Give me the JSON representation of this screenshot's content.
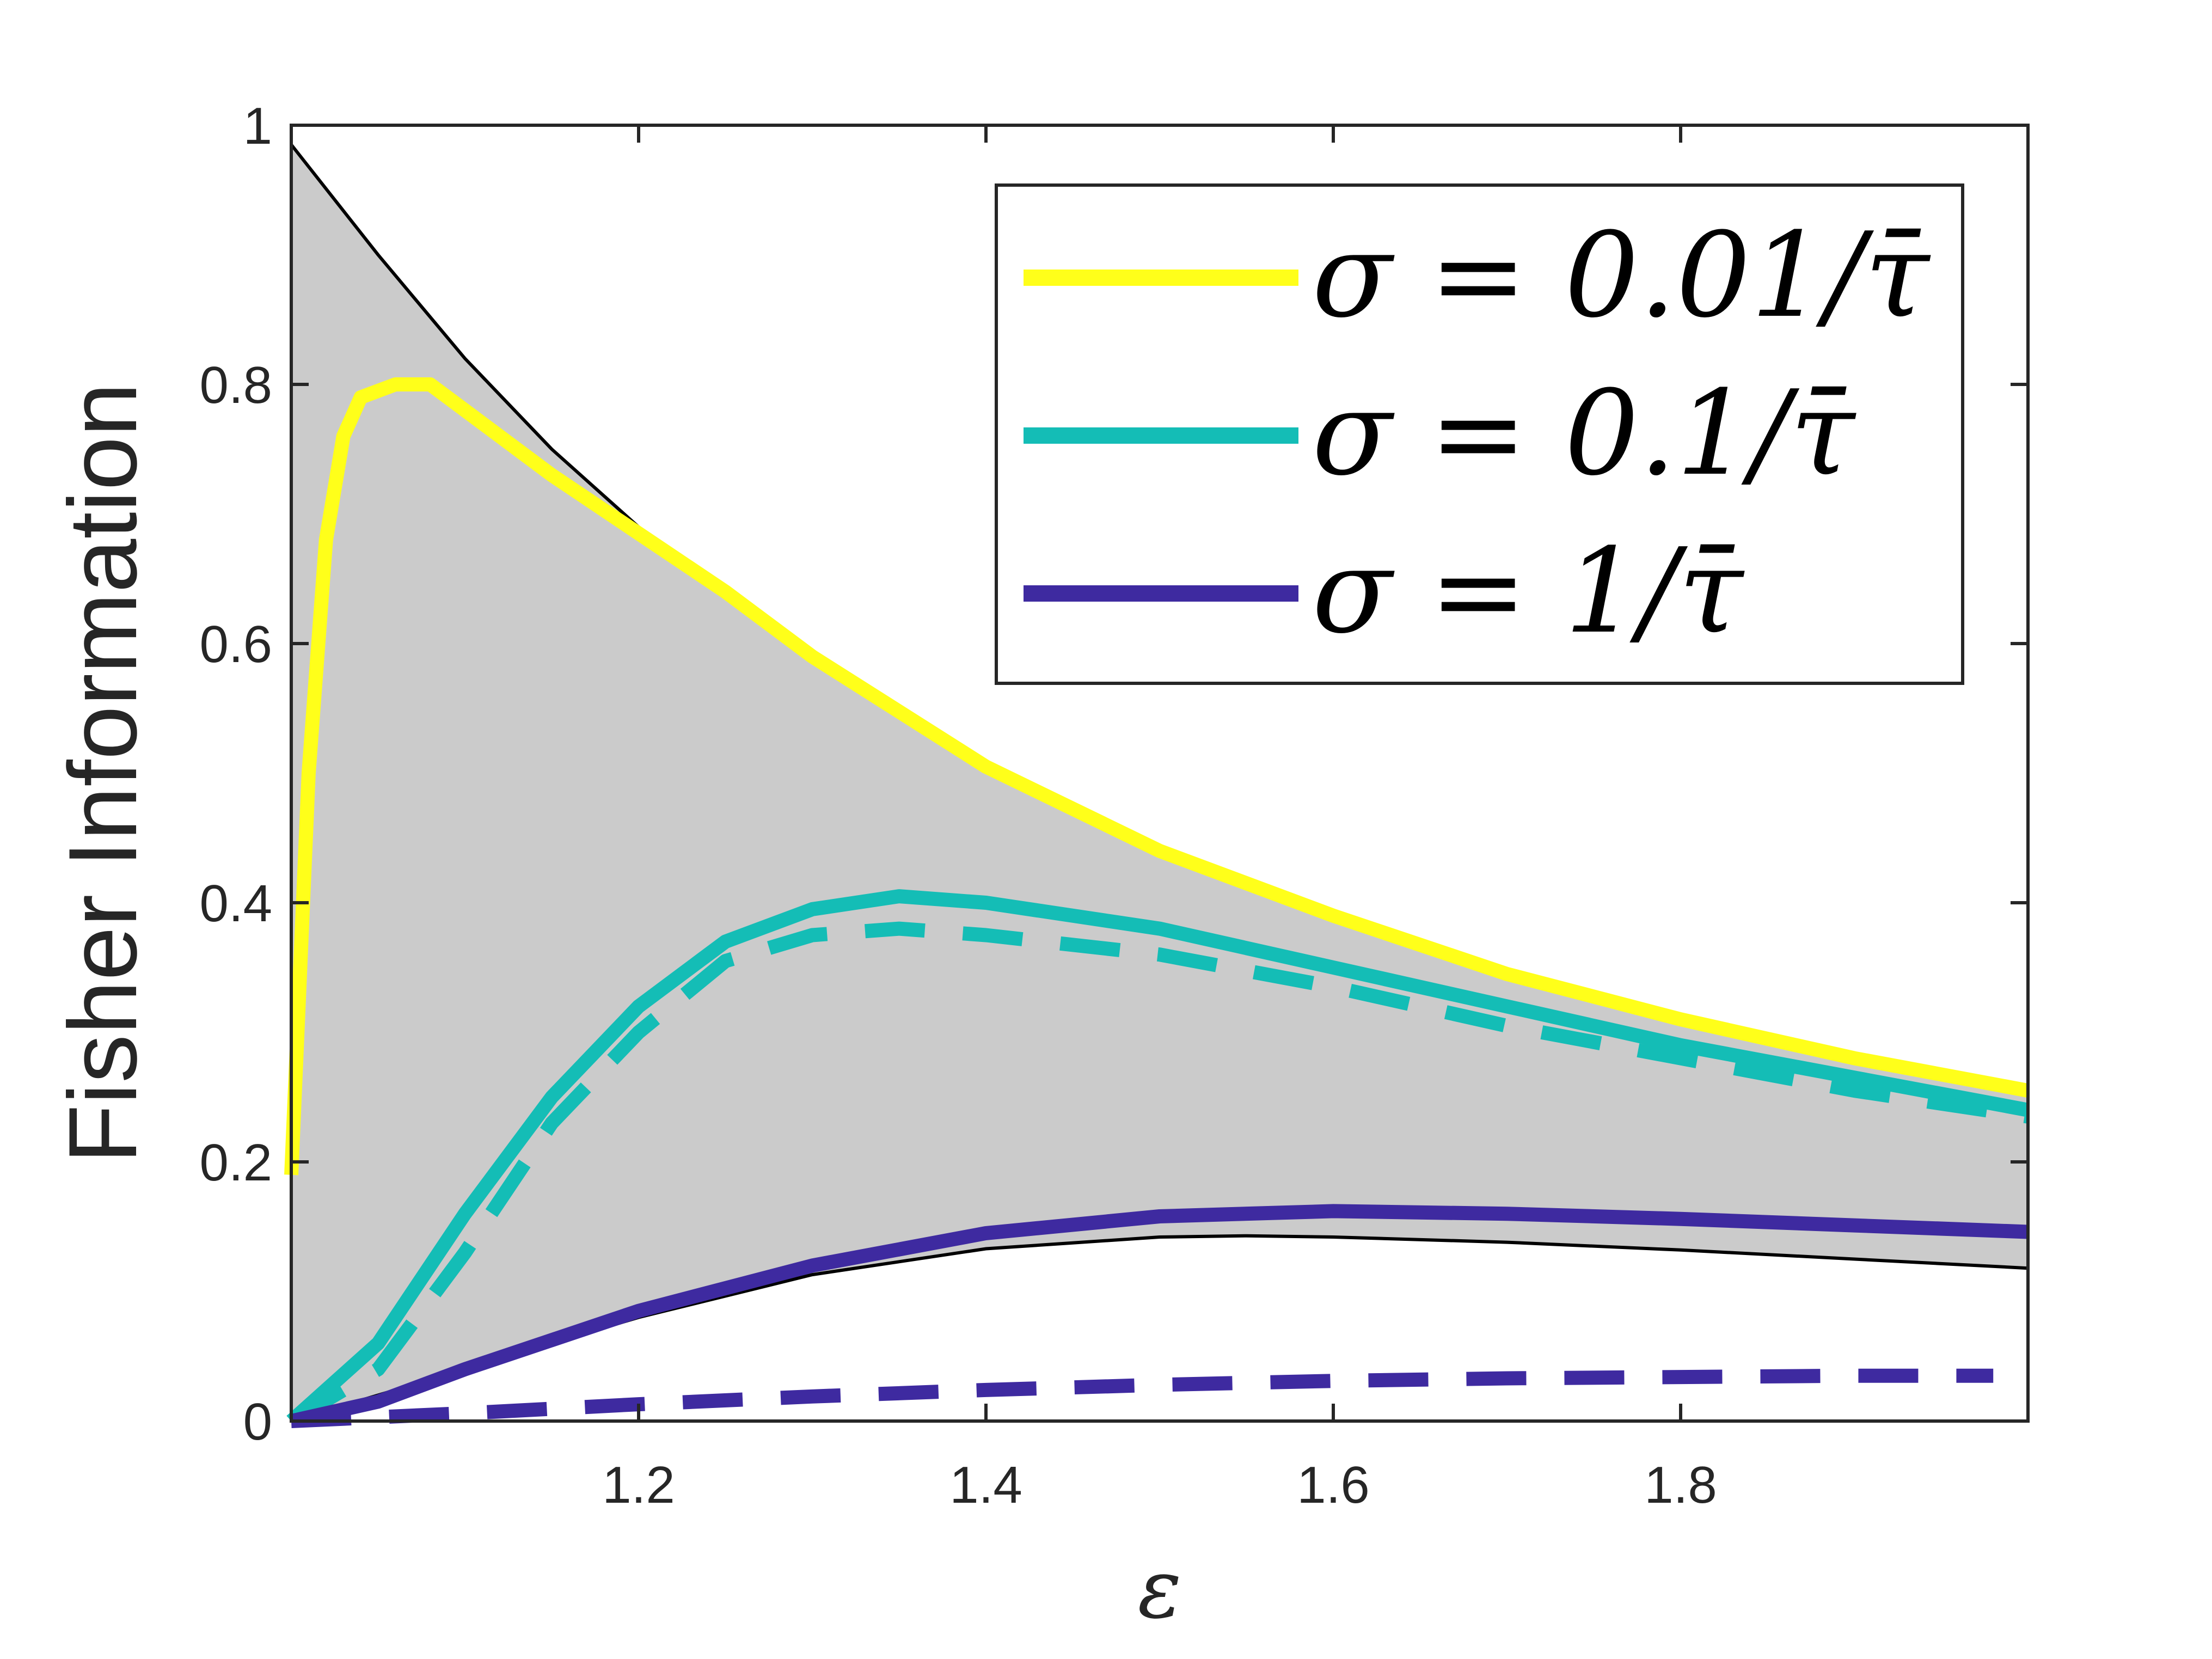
{
  "chart_data": {
    "type": "line",
    "title": "",
    "xlabel": "ε",
    "ylabel": "Fisher Information",
    "xlim": [
      1.0,
      2.0
    ],
    "ylim": [
      0,
      1
    ],
    "xticks": [
      1.2,
      1.4,
      1.6,
      1.8
    ],
    "xtick_labels": [
      "1.2",
      "1.4",
      "1.6",
      "1.8"
    ],
    "yticks": [
      0,
      0.2,
      0.4,
      0.6,
      0.8,
      1
    ],
    "ytick_labels": [
      "0",
      "0.2",
      "0.4",
      "0.6",
      "0.8",
      "1"
    ],
    "grid": false,
    "legend_position": "top-right",
    "band": {
      "fill": "#cbcbcb",
      "stroke": "#000000",
      "upper": {
        "x": [
          1.0,
          1.05,
          1.1,
          1.15,
          1.2,
          1.25,
          1.3,
          1.4,
          1.5,
          1.6,
          1.7,
          1.8,
          1.9,
          2.0
        ],
        "y": [
          0.985,
          0.9,
          0.82,
          0.75,
          0.69,
          0.64,
          0.59,
          0.505,
          0.44,
          0.39,
          0.345,
          0.31,
          0.28,
          0.255
        ]
      },
      "lower": {
        "x": [
          1.0,
          1.1,
          1.2,
          1.3,
          1.4,
          1.5,
          1.55,
          1.6,
          1.7,
          1.8,
          1.9,
          2.0
        ],
        "y": [
          0.0,
          0.04,
          0.08,
          0.113,
          0.133,
          0.142,
          0.143,
          0.142,
          0.138,
          0.132,
          0.125,
          0.118
        ]
      }
    },
    "series": [
      {
        "name": "σ = 0.01/τ̄",
        "color": "#ffff1a",
        "style": "solid",
        "x": [
          1.0,
          1.01,
          1.02,
          1.03,
          1.04,
          1.06,
          1.08,
          1.1,
          1.15,
          1.2,
          1.25,
          1.3,
          1.4,
          1.5,
          1.6,
          1.7,
          1.8,
          1.9,
          2.0
        ],
        "y": [
          0.19,
          0.5,
          0.68,
          0.76,
          0.79,
          0.8,
          0.8,
          0.78,
          0.73,
          0.685,
          0.64,
          0.59,
          0.505,
          0.44,
          0.39,
          0.345,
          0.31,
          0.28,
          0.255
        ]
      },
      {
        "name": "σ = 0.1/τ̄",
        "color": "#14bdb6",
        "style": "solid",
        "x": [
          1.0,
          1.05,
          1.1,
          1.15,
          1.2,
          1.25,
          1.3,
          1.35,
          1.4,
          1.5,
          1.6,
          1.7,
          1.8,
          1.9,
          2.0
        ],
        "y": [
          0.0,
          0.06,
          0.16,
          0.25,
          0.32,
          0.37,
          0.395,
          0.405,
          0.4,
          0.38,
          0.35,
          0.32,
          0.29,
          0.265,
          0.24
        ]
      },
      {
        "name": "σ = 0.1/τ̄ (dashed)",
        "color": "#14bdb6",
        "style": "dashed",
        "x": [
          1.0,
          1.05,
          1.1,
          1.15,
          1.2,
          1.25,
          1.3,
          1.35,
          1.4,
          1.5,
          1.6,
          1.7,
          1.8,
          1.9,
          2.0
        ],
        "y": [
          0.0,
          0.04,
          0.13,
          0.23,
          0.3,
          0.355,
          0.375,
          0.38,
          0.375,
          0.36,
          0.335,
          0.305,
          0.28,
          0.255,
          0.235
        ]
      },
      {
        "name": "σ = 1/τ̄",
        "color": "#3e2aa0",
        "style": "solid",
        "x": [
          1.0,
          1.05,
          1.1,
          1.2,
          1.3,
          1.4,
          1.5,
          1.6,
          1.7,
          1.8,
          1.9,
          2.0
        ],
        "y": [
          0.0,
          0.015,
          0.04,
          0.085,
          0.12,
          0.145,
          0.158,
          0.162,
          0.16,
          0.156,
          0.151,
          0.146
        ]
      },
      {
        "name": "σ = 1/τ̄ (dashed)",
        "color": "#3e2aa0",
        "style": "dashed",
        "x": [
          1.0,
          1.1,
          1.2,
          1.3,
          1.4,
          1.5,
          1.6,
          1.7,
          1.8,
          1.9,
          1.98
        ],
        "y": [
          0.0,
          0.006,
          0.013,
          0.019,
          0.024,
          0.028,
          0.031,
          0.033,
          0.034,
          0.035,
          0.035
        ]
      }
    ],
    "legend": [
      {
        "label": "σ = 0.01/τ̄",
        "color": "#ffff1a"
      },
      {
        "label": "σ = 0.1/τ̄",
        "color": "#14bdb6"
      },
      {
        "label": "σ = 1/τ̄",
        "color": "#3e2aa0"
      }
    ]
  }
}
